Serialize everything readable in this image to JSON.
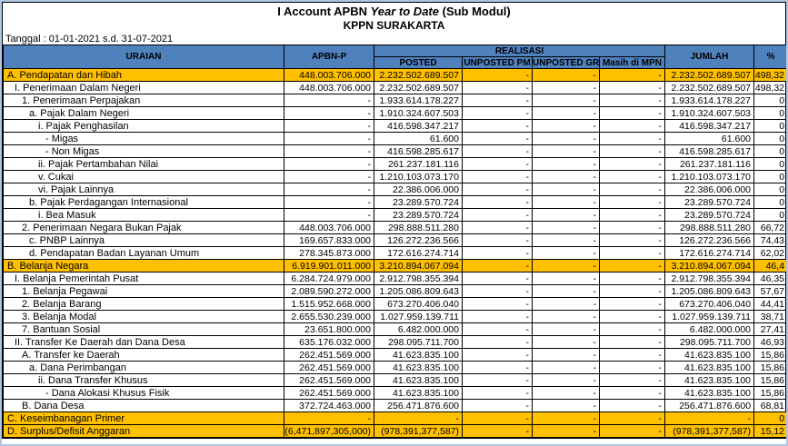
{
  "title": {
    "part1": "I Account APBN ",
    "part2_italic": "Year to Date",
    "part3": " (Sub Modul)",
    "subtitle": "KPPN SURAKARTA"
  },
  "date_label": "Tanggal : 01-01-2021 s.d. 31-07-2021",
  "colors": {
    "header_bg": "#4f81bd",
    "highlight_bg": "#ffc000",
    "frame_bg": "#aec6e2",
    "grid_border": "#000000"
  },
  "table": {
    "headers": {
      "uraian": "URAIAN",
      "apbnp": "APBN-P",
      "realisasi": "REALISASI",
      "posted": "POSTED",
      "unposted_pm": "UNPOSTED PM",
      "unposted_gr": "UNPOSTED GR",
      "masih_di_mpn": "Masih di MPN",
      "jumlah": "JUMLAH",
      "pct": "%"
    },
    "rows": [
      {
        "label": "A. Pendapatan dan Hibah",
        "indent": 0,
        "apbnp": "448.003.706.000",
        "posted": "2.232.502.689.507",
        "pm": "-",
        "gr": "-",
        "mpn": "-",
        "jumlah": "2.232.502.689.507",
        "pct": "498,32",
        "highlight": true
      },
      {
        "label": "I. Penerimaan Dalam Negeri",
        "indent": 1,
        "apbnp": "448.003.706.000",
        "posted": "2.232.502.689.507",
        "pm": "-",
        "gr": "-",
        "mpn": "-",
        "jumlah": "2.232.502.689.507",
        "pct": "498,32",
        "highlight": false
      },
      {
        "label": "1. Penerimaan Perpajakan",
        "indent": 2,
        "apbnp": "-",
        "posted": "1.933.614.178.227",
        "pm": "-",
        "gr": "-",
        "mpn": "-",
        "jumlah": "1.933.614.178.227",
        "pct": "0",
        "highlight": false
      },
      {
        "label": "a. Pajak Dalam Negeri",
        "indent": 3,
        "apbnp": "-",
        "posted": "1.910.324.607.503",
        "pm": "-",
        "gr": "-",
        "mpn": "-",
        "jumlah": "1.910.324.607.503",
        "pct": "0",
        "highlight": false
      },
      {
        "label": "i. Pajak Penghasilan",
        "indent": 4,
        "apbnp": "-",
        "posted": "416.598.347.217",
        "pm": "-",
        "gr": "-",
        "mpn": "-",
        "jumlah": "416.598.347.217",
        "pct": "0",
        "highlight": false
      },
      {
        "label": "- Migas",
        "indent": 5,
        "apbnp": "-",
        "posted": "61.600",
        "pm": "-",
        "gr": "-",
        "mpn": "-",
        "jumlah": "61.600",
        "pct": "0",
        "highlight": false
      },
      {
        "label": "- Non Migas",
        "indent": 5,
        "apbnp": "-",
        "posted": "416.598.285.617",
        "pm": "-",
        "gr": "-",
        "mpn": "-",
        "jumlah": "416.598.285.617",
        "pct": "0",
        "highlight": false
      },
      {
        "label": "ii. Pajak Pertambahan Nilai",
        "indent": 4,
        "apbnp": "-",
        "posted": "261.237.181.116",
        "pm": "-",
        "gr": "-",
        "mpn": "-",
        "jumlah": "261.237.181.116",
        "pct": "0",
        "highlight": false
      },
      {
        "label": "v. Cukai",
        "indent": 4,
        "apbnp": "-",
        "posted": "1.210.103.073.170",
        "pm": "-",
        "gr": "-",
        "mpn": "-",
        "jumlah": "1.210.103.073.170",
        "pct": "0",
        "highlight": false
      },
      {
        "label": "vi. Pajak Lainnya",
        "indent": 4,
        "apbnp": "-",
        "posted": "22.386.006.000",
        "pm": "-",
        "gr": "-",
        "mpn": "-",
        "jumlah": "22.386.006.000",
        "pct": "0",
        "highlight": false
      },
      {
        "label": "b. Pajak Perdagangan Internasional",
        "indent": 3,
        "apbnp": "-",
        "posted": "23.289.570.724",
        "pm": "-",
        "gr": "-",
        "mpn": "-",
        "jumlah": "23.289.570.724",
        "pct": "0",
        "highlight": false
      },
      {
        "label": "i. Bea Masuk",
        "indent": 4,
        "apbnp": "-",
        "posted": "23.289.570.724",
        "pm": "-",
        "gr": "-",
        "mpn": "-",
        "jumlah": "23.289.570.724",
        "pct": "0",
        "highlight": false
      },
      {
        "label": "2. Penerimaan Negara Bukan Pajak",
        "indent": 2,
        "apbnp": "448.003.706.000",
        "posted": "298.888.511.280",
        "pm": "-",
        "gr": "-",
        "mpn": "-",
        "jumlah": "298.888.511.280",
        "pct": "66,72",
        "highlight": false
      },
      {
        "label": "c. PNBP Lainnya",
        "indent": 3,
        "apbnp": "169.657.833.000",
        "posted": "126.272.236.566",
        "pm": "-",
        "gr": "-",
        "mpn": "-",
        "jumlah": "126.272.236.566",
        "pct": "74,43",
        "highlight": false
      },
      {
        "label": "d. Pendapatan Badan Layanan Umum",
        "indent": 3,
        "apbnp": "278.345.873.000",
        "posted": "172.616.274.714",
        "pm": "-",
        "gr": "-",
        "mpn": "-",
        "jumlah": "172.616.274.714",
        "pct": "62,02",
        "highlight": false
      },
      {
        "label": "B. Belanja Negara",
        "indent": 0,
        "apbnp": "6.919.901.011.000",
        "posted": "3.210.894.067.094",
        "pm": "-",
        "gr": "-",
        "mpn": "-",
        "jumlah": "3.210.894.067.094",
        "pct": "46,4",
        "highlight": true
      },
      {
        "label": "I. Belanja Pemerintah Pusat",
        "indent": 1,
        "apbnp": "6.284.724.979.000",
        "posted": "2.912.798.355.394",
        "pm": "-",
        "gr": "-",
        "mpn": "-",
        "jumlah": "2.912.798.355.394",
        "pct": "46,35",
        "highlight": false
      },
      {
        "label": "1. Belanja Pegawai",
        "indent": 2,
        "apbnp": "2.089.590.272.000",
        "posted": "1.205.086.809.643",
        "pm": "-",
        "gr": "-",
        "mpn": "-",
        "jumlah": "1.205.086.809.643",
        "pct": "57,67",
        "highlight": false
      },
      {
        "label": "2. Belanja Barang",
        "indent": 2,
        "apbnp": "1.515.952.668.000",
        "posted": "673.270.406.040",
        "pm": "-",
        "gr": "-",
        "mpn": "-",
        "jumlah": "673.270.406.040",
        "pct": "44,41",
        "highlight": false
      },
      {
        "label": "3. Belanja Modal",
        "indent": 2,
        "apbnp": "2.655.530.239.000",
        "posted": "1.027.959.139.711",
        "pm": "-",
        "gr": "-",
        "mpn": "-",
        "jumlah": "1.027.959.139.711",
        "pct": "38,71",
        "highlight": false
      },
      {
        "label": "7. Bantuan Sosial",
        "indent": 2,
        "apbnp": "23.651.800.000",
        "posted": "6.482.000.000",
        "pm": "-",
        "gr": "-",
        "mpn": "-",
        "jumlah": "6.482.000.000",
        "pct": "27,41",
        "highlight": false
      },
      {
        "label": "II. Transfer Ke Daerah dan Dana Desa",
        "indent": 1,
        "apbnp": "635.176.032.000",
        "posted": "298.095.711.700",
        "pm": "-",
        "gr": "-",
        "mpn": "-",
        "jumlah": "298.095.711.700",
        "pct": "46,93",
        "highlight": false
      },
      {
        "label": "A. Transfer ke Daerah",
        "indent": 2,
        "apbnp": "262.451.569.000",
        "posted": "41.623.835.100",
        "pm": "-",
        "gr": "-",
        "mpn": "-",
        "jumlah": "41.623.835.100",
        "pct": "15,86",
        "highlight": false
      },
      {
        "label": "a. Dana Perimbangan",
        "indent": 3,
        "apbnp": "262.451.569.000",
        "posted": "41.623.835.100",
        "pm": "-",
        "gr": "-",
        "mpn": "-",
        "jumlah": "41.623.835.100",
        "pct": "15,86",
        "highlight": false
      },
      {
        "label": "ii. Dana Transfer Khusus",
        "indent": 4,
        "apbnp": "262.451.569.000",
        "posted": "41.623.835.100",
        "pm": "-",
        "gr": "-",
        "mpn": "-",
        "jumlah": "41.623.835.100",
        "pct": "15,86",
        "highlight": false
      },
      {
        "label": "- Dana Alokasi Khusus Fisik",
        "indent": 5,
        "apbnp": "262.451.569.000",
        "posted": "41.623.835.100",
        "pm": "-",
        "gr": "-",
        "mpn": "-",
        "jumlah": "41.623.835.100",
        "pct": "15,86",
        "highlight": false
      },
      {
        "label": "B. Dana Desa",
        "indent": 2,
        "apbnp": "372.724.463.000",
        "posted": "256.471.876.600",
        "pm": "-",
        "gr": "-",
        "mpn": "-",
        "jumlah": "256.471.876.600",
        "pct": "68,81",
        "highlight": false
      },
      {
        "label": "C. Keseimbanagan Primer",
        "indent": 0,
        "apbnp": "-",
        "posted": "-",
        "pm": "-",
        "gr": "-",
        "mpn": "-",
        "jumlah": "-",
        "pct": "0",
        "highlight": true
      },
      {
        "label": "D. Surplus/Defisit Anggaran",
        "indent": 0,
        "apbnp": "(6,471,897,305,000)",
        "posted": "(978,391,377,587)",
        "pm": "-",
        "gr": "-",
        "mpn": "-",
        "jumlah": "(978,391,377,587)",
        "pct": "15,12",
        "highlight": true
      }
    ]
  }
}
